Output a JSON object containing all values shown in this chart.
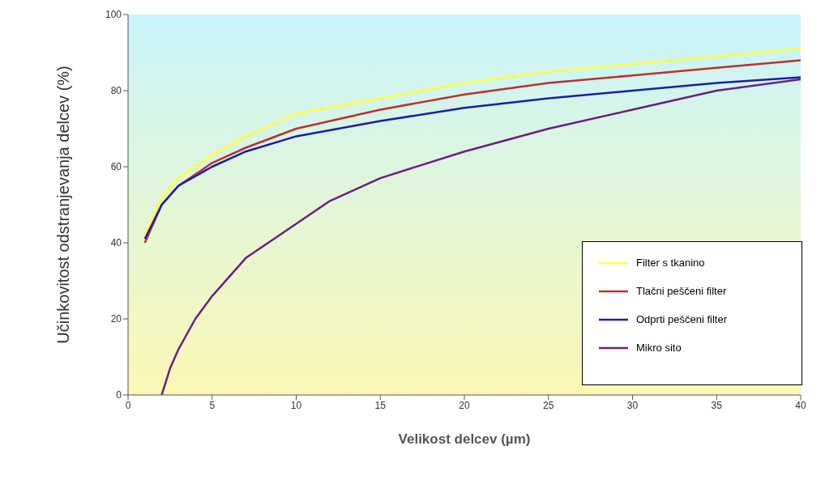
{
  "chart_data": {
    "type": "line",
    "xlabel": "Velikost delcev  (µm)",
    "ylabel": "Učinkovitost odstranjevanja delcev    (%)",
    "xlim": [
      0,
      40
    ],
    "xticks": [
      0,
      5,
      10,
      15,
      20,
      25,
      30,
      35,
      40
    ],
    "ylim": [
      0,
      100
    ],
    "yticks": [
      0,
      20,
      40,
      60,
      80,
      100
    ],
    "grid": false,
    "legend": "bottom right",
    "marker": "none",
    "line_style": "solid",
    "series": [
      {
        "name": "Filter s tkanino",
        "color": "#ffff40",
        "x": [
          1,
          2,
          3,
          5,
          7,
          10,
          15,
          20,
          25,
          30,
          35,
          40
        ],
        "values": [
          42,
          52,
          57,
          63,
          68,
          74,
          78,
          82,
          85,
          87,
          89,
          91
        ]
      },
      {
        "name": "Tlačni peščeni filter",
        "color": "#b83232",
        "x": [
          1,
          2,
          3,
          5,
          7,
          10,
          15,
          20,
          25,
          30,
          35,
          40
        ],
        "values": [
          40,
          50,
          55,
          61,
          65,
          70,
          75,
          79,
          82,
          84,
          86,
          88
        ]
      },
      {
        "name": "Odprti peščeni filter",
        "color": "#1c1ca8",
        "x": [
          1,
          2,
          3,
          5,
          7,
          10,
          15,
          20,
          25,
          30,
          35,
          40
        ],
        "values": [
          41,
          50,
          55,
          60,
          64,
          68,
          72,
          75.5,
          78,
          80,
          82,
          83.5
        ]
      },
      {
        "name": "Mikro sito",
        "color": "#6a2080",
        "x": [
          2,
          2.5,
          3,
          4,
          5,
          7,
          10,
          12,
          15,
          20,
          25,
          30,
          35,
          40
        ],
        "values": [
          0,
          7,
          12,
          20,
          26,
          36,
          45,
          51,
          57,
          64,
          70,
          75,
          80,
          83
        ]
      }
    ]
  }
}
